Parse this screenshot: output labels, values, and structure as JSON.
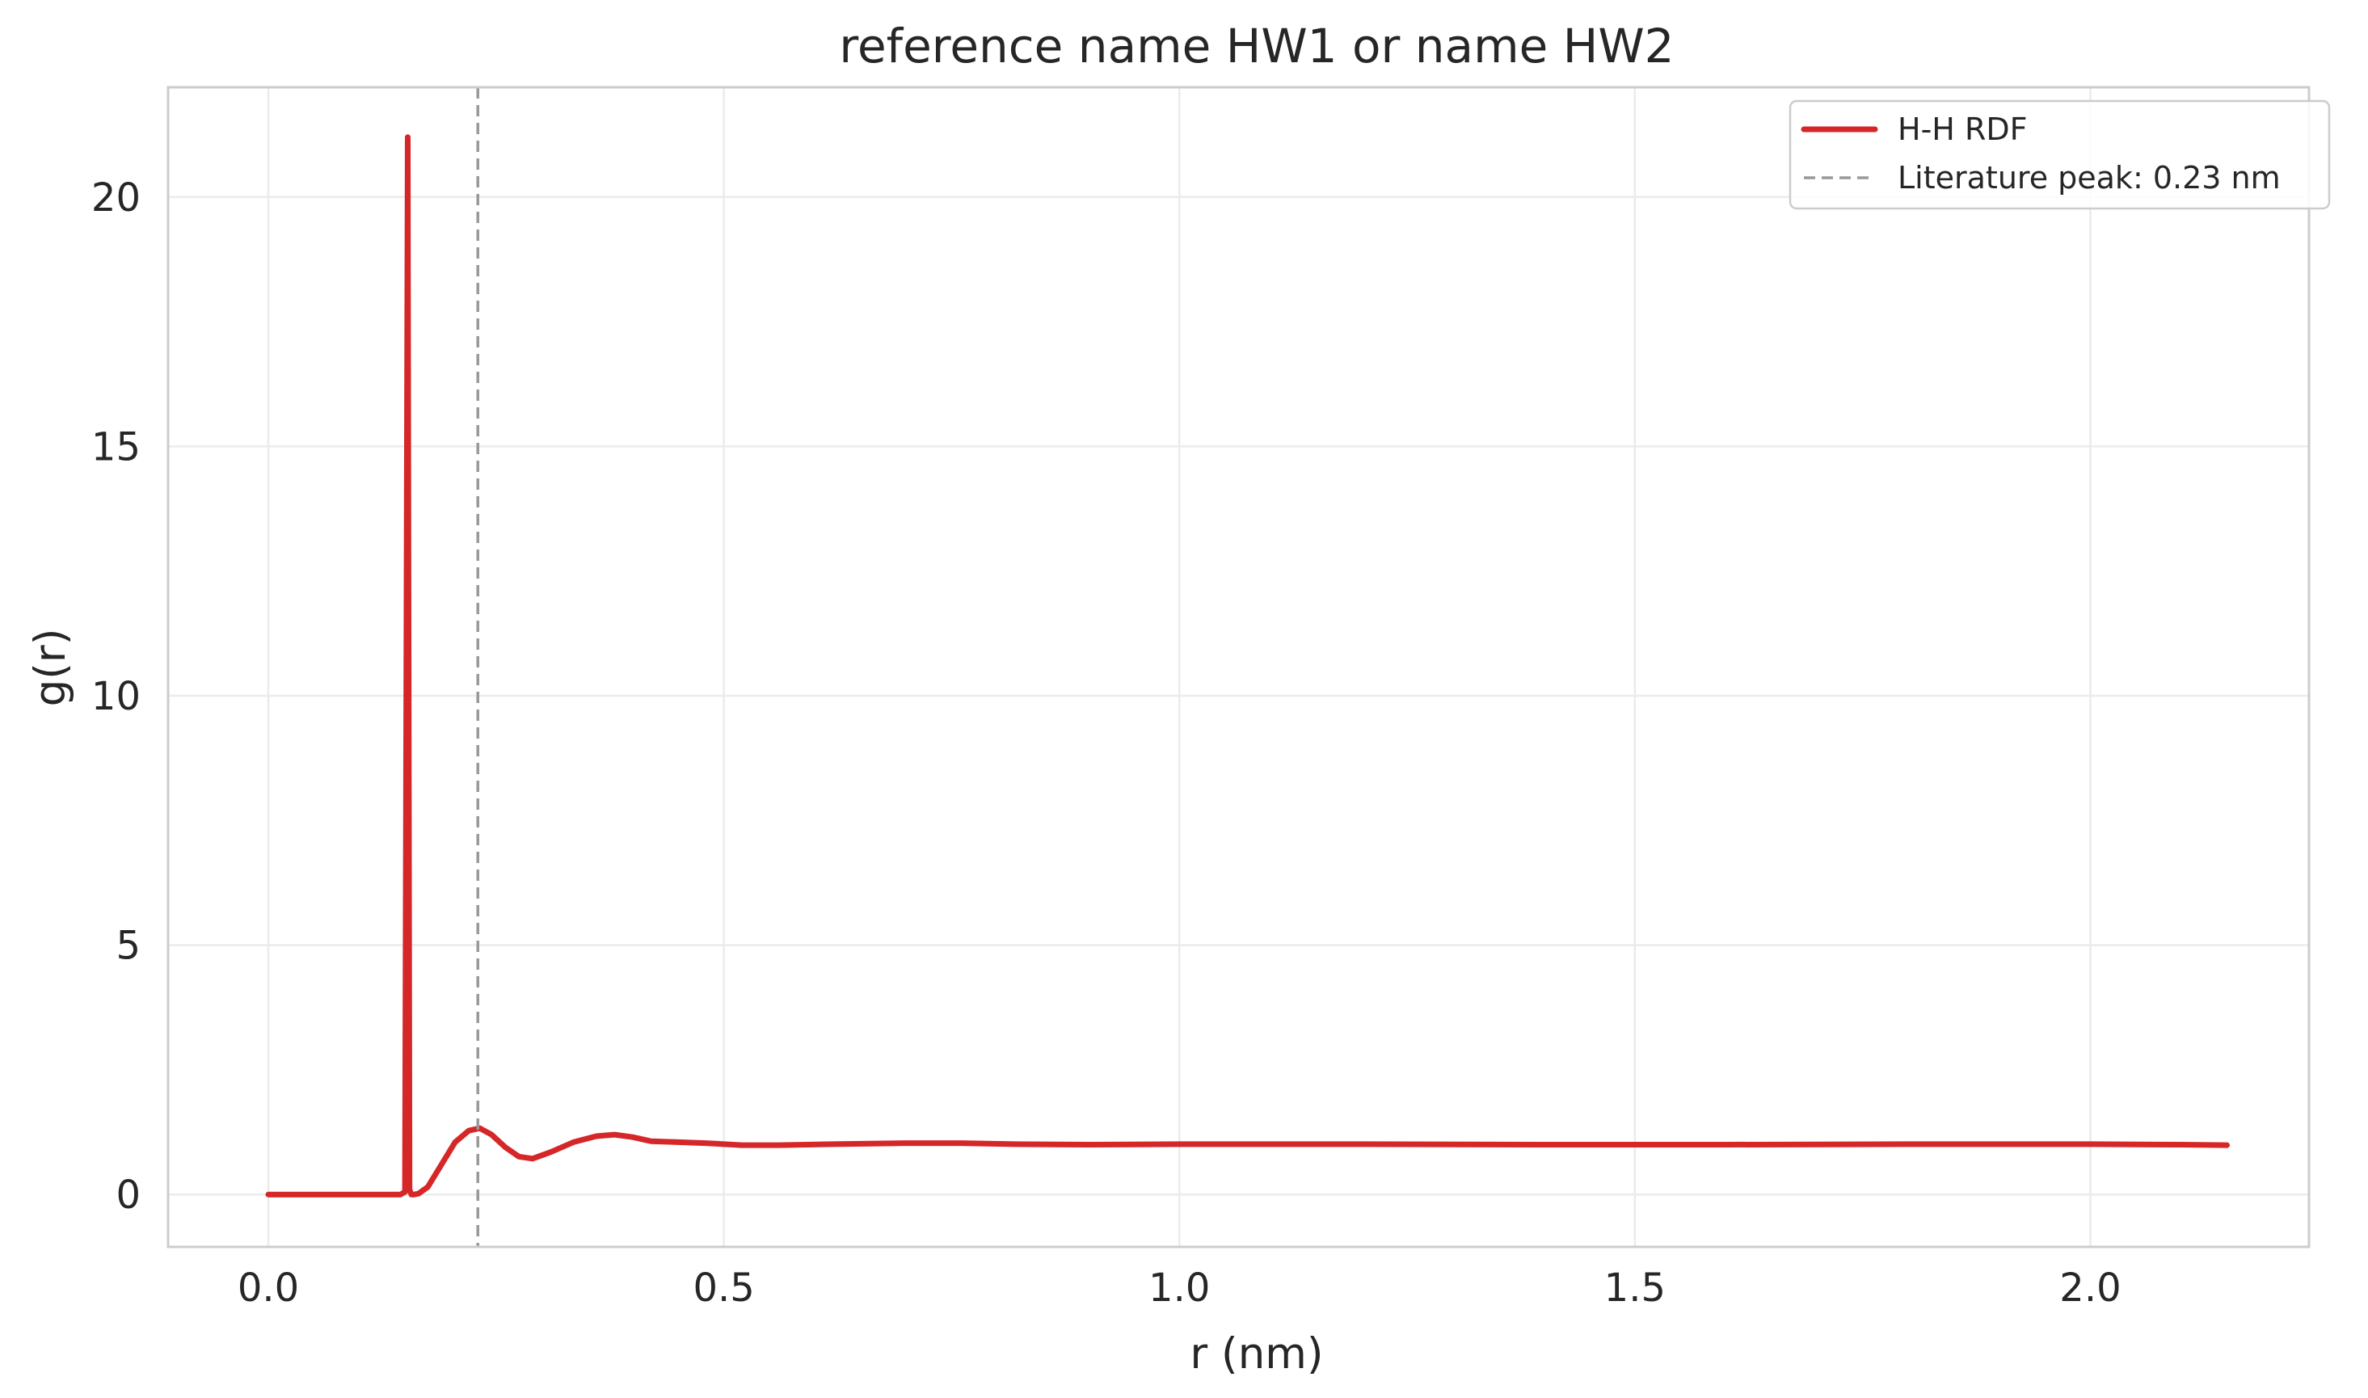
{
  "chart_data": {
    "type": "line",
    "title": "reference name HW1 or name HW2",
    "xlabel": "r (nm)",
    "ylabel": "g(r)",
    "xlim": [
      -0.11,
      2.24
    ],
    "ylim": [
      -1.05,
      22.2
    ],
    "xticks": [
      0.0,
      0.5,
      1.0,
      1.5,
      2.0
    ],
    "xtick_labels": [
      "0.0",
      "0.5",
      "1.0",
      "1.5",
      "2.0"
    ],
    "yticks": [
      0,
      5,
      10,
      15,
      20
    ],
    "ytick_labels": [
      "0",
      "5",
      "10",
      "15",
      "20"
    ],
    "grid": true,
    "legend_position": "top-right",
    "series": [
      {
        "name": "H-H RDF",
        "color": "#d62728",
        "style": "solid",
        "x": [
          0.0,
          0.05,
          0.1,
          0.145,
          0.15,
          0.153,
          0.155,
          0.157,
          0.16,
          0.165,
          0.175,
          0.19,
          0.205,
          0.22,
          0.232,
          0.245,
          0.26,
          0.275,
          0.29,
          0.31,
          0.335,
          0.36,
          0.38,
          0.4,
          0.42,
          0.45,
          0.48,
          0.52,
          0.56,
          0.62,
          0.7,
          0.76,
          0.82,
          0.9,
          1.0,
          1.2,
          1.4,
          1.6,
          1.8,
          2.0,
          2.1,
          2.15
        ],
        "y": [
          0.0,
          0.0,
          0.0,
          0.0,
          0.05,
          21.2,
          0.1,
          0.0,
          0.0,
          0.02,
          0.15,
          0.6,
          1.05,
          1.28,
          1.33,
          1.2,
          0.95,
          0.76,
          0.72,
          0.85,
          1.05,
          1.17,
          1.2,
          1.15,
          1.07,
          1.05,
          1.03,
          0.99,
          0.99,
          1.01,
          1.03,
          1.03,
          1.01,
          1.0,
          1.01,
          1.01,
          1.0,
          1.0,
          1.01,
          1.01,
          1.0,
          0.99
        ]
      },
      {
        "name": "Literature peak: 0.23 nm",
        "color": "#999999",
        "style": "dashed",
        "vline_x": 0.23
      }
    ]
  }
}
